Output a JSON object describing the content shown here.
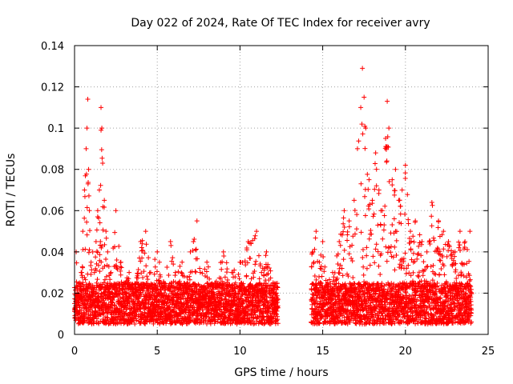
{
  "chart_data": {
    "type": "scatter",
    "title": "Day 022 of 2024, Rate Of TEC Index for receiver avry",
    "xlabel": "GPS time / hours",
    "ylabel": "ROTI / TECUs",
    "xlim": [
      0,
      25
    ],
    "ylim": [
      0,
      0.14
    ],
    "xticks": [
      0,
      5,
      10,
      15,
      20,
      25
    ],
    "xtick_labels": [
      "0",
      "5",
      "10",
      "15",
      "20",
      "25"
    ],
    "yticks": [
      0,
      0.02,
      0.04,
      0.06,
      0.08,
      0.1,
      0.12,
      0.14
    ],
    "ytick_labels": [
      "0",
      "0.02",
      "0.04",
      "0.06",
      "0.08",
      "0.1",
      "0.12",
      "0.14"
    ],
    "grid": true,
    "marker": "+",
    "color": "#ff0000",
    "data_gap_hours": [
      12.3,
      14.3
    ],
    "series": [
      {
        "name": "ROTI",
        "x": [
          0.0,
          0.1,
          0.2,
          0.3,
          0.4,
          0.5,
          0.6,
          0.7,
          0.75,
          0.8,
          0.85,
          0.9,
          1.0,
          1.1,
          1.2,
          1.3,
          1.4,
          1.5,
          1.6,
          1.65,
          1.7,
          1.8,
          1.9,
          2.0,
          2.2,
          2.5,
          2.8,
          3.0,
          3.3,
          3.6,
          4.0,
          4.3,
          4.6,
          5.0,
          5.4,
          5.8,
          6.1,
          6.5,
          7.0,
          7.4,
          7.6,
          8.0,
          8.5,
          9.0,
          9.5,
          10.0,
          10.5,
          11.0,
          11.3,
          11.6,
          12.0,
          12.2,
          14.4,
          14.6,
          14.8,
          15.0,
          15.3,
          15.6,
          16.0,
          16.3,
          16.6,
          16.9,
          17.1,
          17.3,
          17.4,
          17.5,
          17.6,
          17.8,
          18.0,
          18.2,
          18.4,
          18.6,
          18.8,
          18.9,
          19.0,
          19.2,
          19.4,
          19.6,
          19.8,
          20.0,
          20.3,
          20.6,
          21.0,
          21.3,
          21.6,
          22.0,
          22.3,
          22.6,
          23.0,
          23.3,
          23.6,
          23.9
        ],
        "y": [
          0.015,
          0.04,
          0.02,
          0.025,
          0.03,
          0.05,
          0.07,
          0.09,
          0.1,
          0.114,
          0.08,
          0.06,
          0.035,
          0.04,
          0.03,
          0.045,
          0.06,
          0.07,
          0.11,
          0.1,
          0.083,
          0.065,
          0.05,
          0.04,
          0.03,
          0.06,
          0.035,
          0.025,
          0.03,
          0.02,
          0.045,
          0.05,
          0.03,
          0.04,
          0.025,
          0.045,
          0.03,
          0.035,
          0.04,
          0.055,
          0.03,
          0.035,
          0.025,
          0.04,
          0.03,
          0.035,
          0.045,
          0.05,
          0.03,
          0.04,
          0.025,
          0.02,
          0.04,
          0.05,
          0.035,
          0.045,
          0.025,
          0.03,
          0.045,
          0.06,
          0.055,
          0.065,
          0.09,
          0.11,
          0.129,
          0.115,
          0.1,
          0.075,
          0.065,
          0.088,
          0.07,
          0.06,
          0.095,
          0.113,
          0.1,
          0.075,
          0.08,
          0.065,
          0.07,
          0.082,
          0.05,
          0.055,
          0.045,
          0.04,
          0.064,
          0.055,
          0.05,
          0.045,
          0.04,
          0.05,
          0.045,
          0.05
        ]
      }
    ]
  }
}
